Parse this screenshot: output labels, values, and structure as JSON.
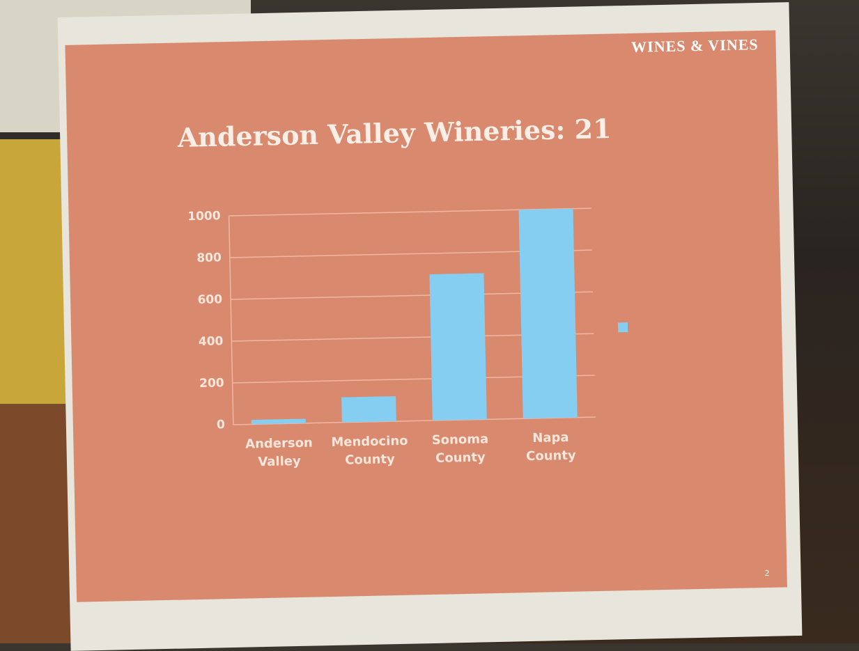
{
  "logo": "WINES & VINES",
  "page_number": "2",
  "chart_data": {
    "type": "bar",
    "title": "Anderson Valley Wineries: 21",
    "categories": [
      "Anderson Valley",
      "Mendocino County",
      "Sonoma County",
      "Napa County"
    ],
    "values": [
      21,
      120,
      700,
      1000
    ],
    "color": "#86cdf2",
    "ylim": [
      0,
      1000
    ],
    "yticks": [
      0,
      200,
      400,
      600,
      800,
      1000
    ],
    "grid": true
  }
}
